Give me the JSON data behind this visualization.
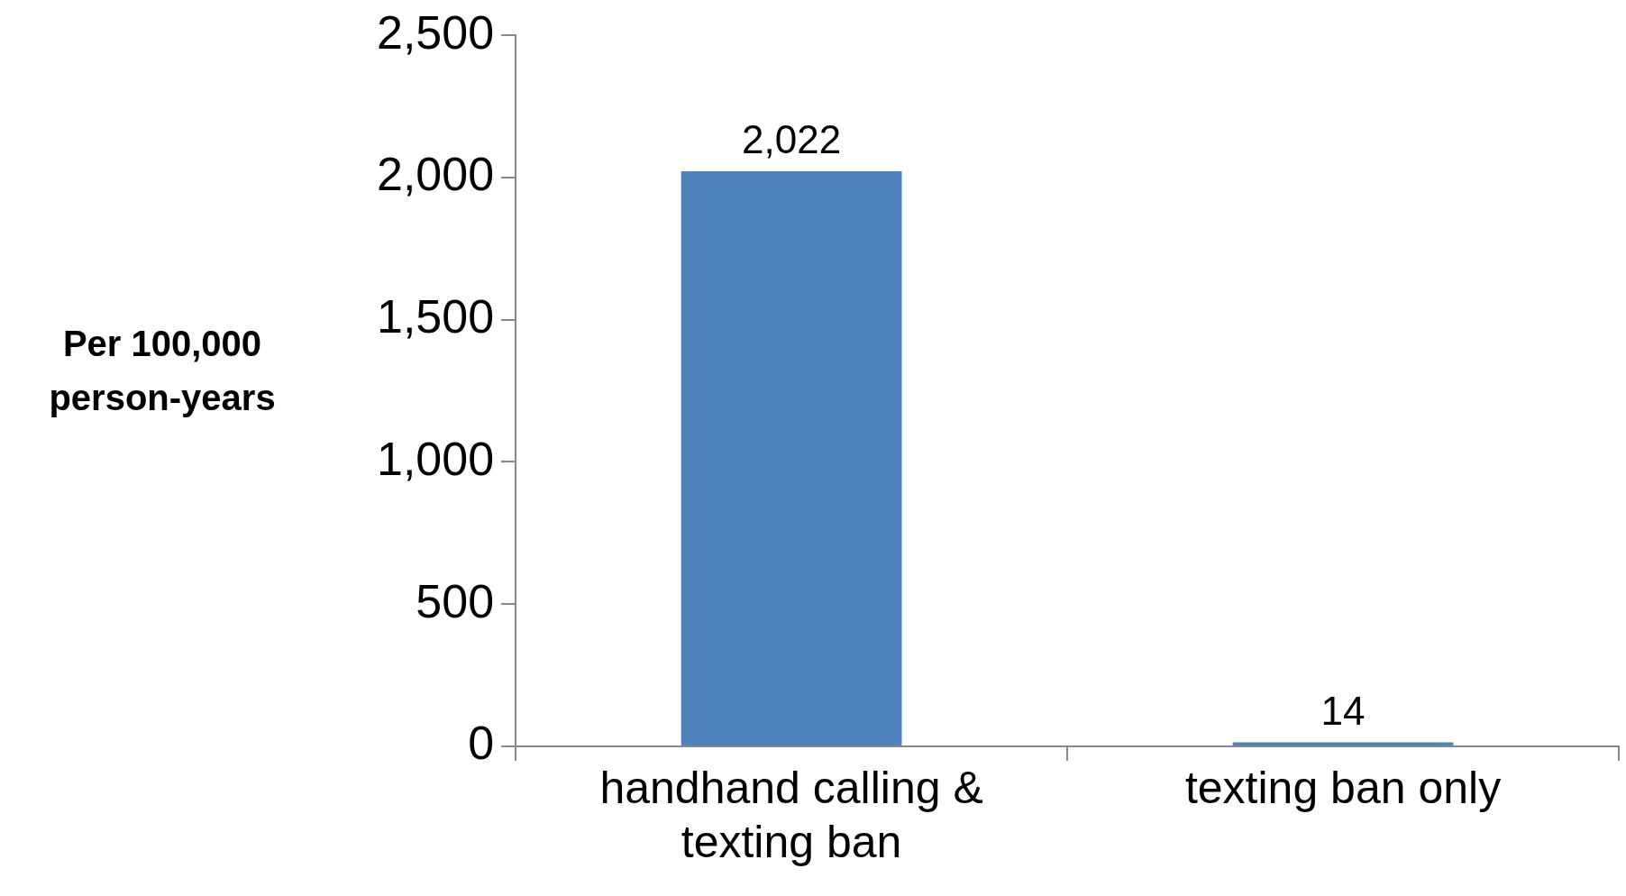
{
  "chart_data": {
    "type": "bar",
    "ylabel": "Per 100,000 person-years",
    "categories": [
      "handhand calling & texting ban",
      "texting ban only"
    ],
    "values": [
      2022,
      14
    ],
    "color": "#4f81bd",
    "ylim": [
      0,
      2500
    ],
    "yticks": [
      0,
      500,
      {
        "value": 1000,
        "label": "1,000"
      },
      {
        "value": 1500,
        "label": "1,500"
      },
      {
        "value": 2000,
        "label": "2,000"
      },
      {
        "value": 2500,
        "label": "2,500"
      }
    ],
    "value_labels": [
      "2,022",
      "14"
    ],
    "grid": false,
    "legend": false
  }
}
